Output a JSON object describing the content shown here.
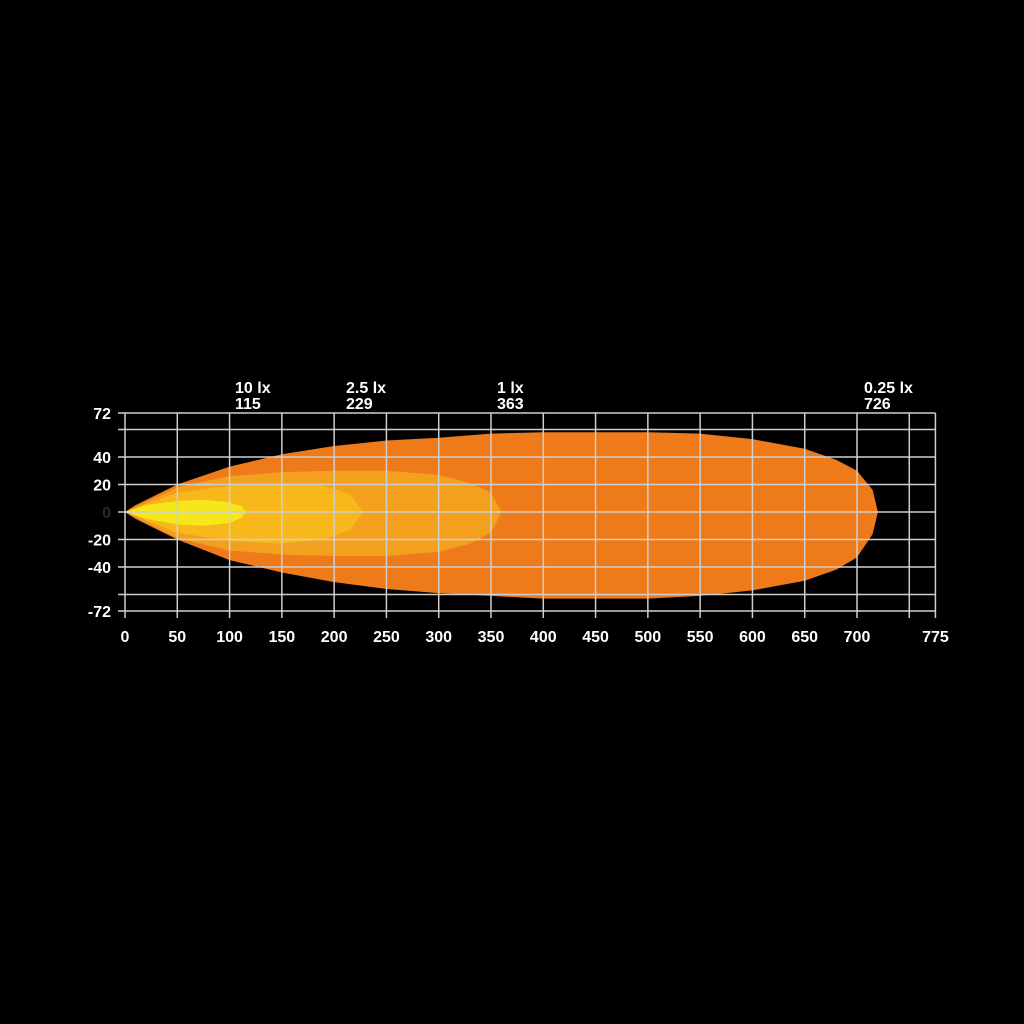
{
  "chart_data": {
    "type": "area",
    "title": "",
    "xlabel": "",
    "ylabel": "",
    "xlim": [
      0,
      775
    ],
    "ylim": [
      -72,
      72
    ],
    "grid": true,
    "x_ticks": [
      0,
      50,
      100,
      150,
      200,
      250,
      300,
      350,
      400,
      450,
      500,
      550,
      600,
      650,
      700,
      775
    ],
    "x_gridlines": [
      0,
      50,
      100,
      150,
      200,
      250,
      300,
      350,
      400,
      450,
      500,
      550,
      600,
      650,
      700,
      750,
      775
    ],
    "y_ticks": [
      72,
      40,
      20,
      0,
      -20,
      -40,
      -72
    ],
    "y_gridlines": [
      72,
      60,
      40,
      20,
      0,
      -20,
      -40,
      -60,
      -72
    ],
    "zero_label_color": "#2a2a2a",
    "series": [
      {
        "name": "0.25 lx",
        "distance": "726",
        "color": "#EF7A19",
        "upper": [
          [
            0,
            0
          ],
          [
            10,
            5
          ],
          [
            50,
            20
          ],
          [
            100,
            33
          ],
          [
            150,
            42
          ],
          [
            200,
            48
          ],
          [
            250,
            52
          ],
          [
            300,
            54
          ],
          [
            350,
            57
          ],
          [
            400,
            58
          ],
          [
            500,
            58
          ],
          [
            550,
            57
          ],
          [
            600,
            53
          ],
          [
            650,
            46
          ],
          [
            680,
            38
          ],
          [
            700,
            30
          ],
          [
            715,
            16
          ],
          [
            720,
            0
          ]
        ],
        "lower": [
          [
            0,
            0
          ],
          [
            10,
            -5
          ],
          [
            50,
            -20
          ],
          [
            100,
            -35
          ],
          [
            150,
            -44
          ],
          [
            200,
            -51
          ],
          [
            250,
            -56
          ],
          [
            300,
            -59
          ],
          [
            350,
            -61
          ],
          [
            400,
            -63
          ],
          [
            500,
            -63
          ],
          [
            550,
            -61
          ],
          [
            600,
            -57
          ],
          [
            650,
            -50
          ],
          [
            680,
            -42
          ],
          [
            700,
            -33
          ],
          [
            715,
            -16
          ],
          [
            720,
            0
          ]
        ]
      },
      {
        "name": "1 lx",
        "distance": "363",
        "color": "#F4A01F",
        "upper": [
          [
            0,
            0
          ],
          [
            50,
            18
          ],
          [
            100,
            26
          ],
          [
            150,
            29
          ],
          [
            200,
            30
          ],
          [
            250,
            30
          ],
          [
            300,
            27
          ],
          [
            330,
            21
          ],
          [
            350,
            14
          ],
          [
            360,
            0
          ]
        ],
        "lower": [
          [
            0,
            0
          ],
          [
            50,
            -19
          ],
          [
            100,
            -28
          ],
          [
            150,
            -31
          ],
          [
            200,
            -32
          ],
          [
            250,
            -32
          ],
          [
            300,
            -29
          ],
          [
            330,
            -23
          ],
          [
            350,
            -15
          ],
          [
            360,
            0
          ]
        ]
      },
      {
        "name": "2.5 lx",
        "distance": "229",
        "color": "#F8B81B",
        "upper": [
          [
            0,
            0
          ],
          [
            50,
            14
          ],
          [
            100,
            19
          ],
          [
            150,
            21
          ],
          [
            190,
            19
          ],
          [
            215,
            13
          ],
          [
            228,
            0
          ]
        ],
        "lower": [
          [
            0,
            0
          ],
          [
            50,
            -15
          ],
          [
            100,
            -21
          ],
          [
            150,
            -23
          ],
          [
            190,
            -20
          ],
          [
            215,
            -13
          ],
          [
            228,
            0
          ]
        ]
      },
      {
        "name": "10 lx",
        "distance": "115",
        "color": "#F6E71B",
        "upper": [
          [
            0,
            0
          ],
          [
            20,
            5
          ],
          [
            50,
            8
          ],
          [
            75,
            9
          ],
          [
            100,
            7
          ],
          [
            112,
            4
          ],
          [
            115,
            0
          ]
        ],
        "lower": [
          [
            0,
            0
          ],
          [
            20,
            -5
          ],
          [
            50,
            -9
          ],
          [
            75,
            -10
          ],
          [
            100,
            -8
          ],
          [
            112,
            -4
          ],
          [
            115,
            0
          ]
        ]
      }
    ]
  },
  "labels": [
    {
      "lux": "10 lx",
      "distance": "115"
    },
    {
      "lux": "2.5 lx",
      "distance": "229"
    },
    {
      "lux": "1 lx",
      "distance": "363"
    },
    {
      "lux": "0.25 lx",
      "distance": "726"
    }
  ]
}
